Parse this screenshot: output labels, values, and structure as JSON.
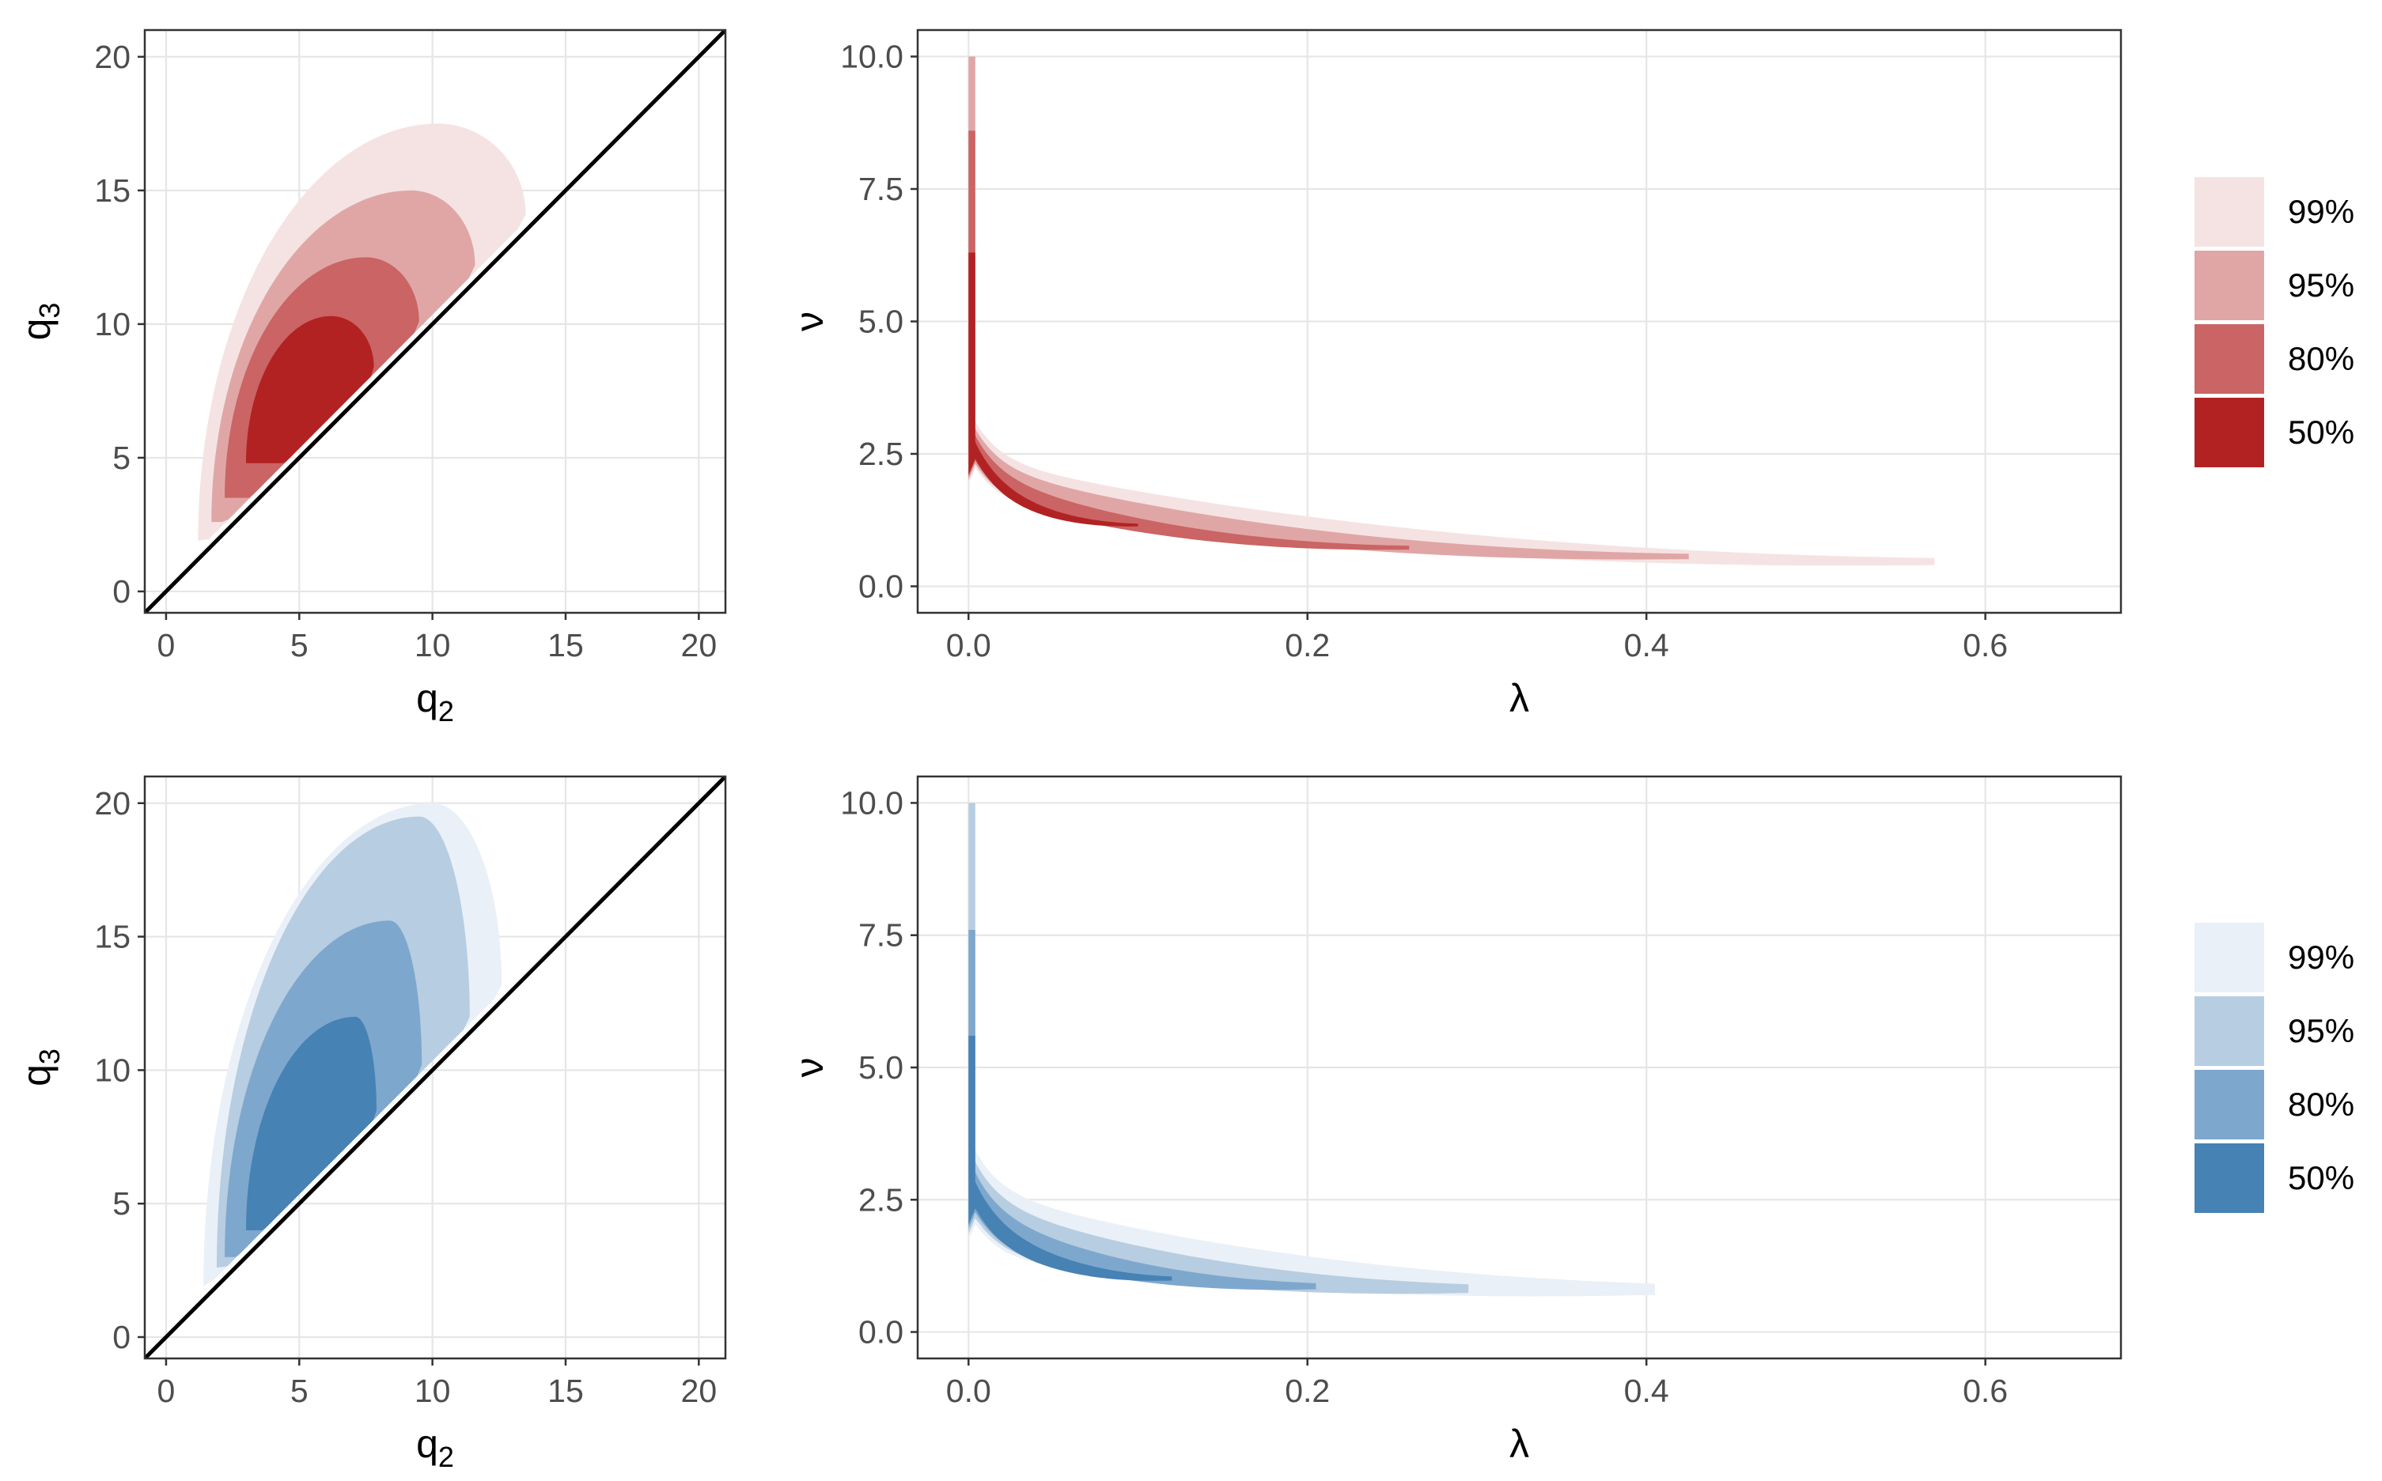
{
  "chart_data": [
    {
      "id": "top-q",
      "type": "contour",
      "palette": "red",
      "xlabel": "q",
      "xlabel_sub": "2",
      "ylabel": "q",
      "ylabel_sub": "3",
      "xlim": [
        -0.8,
        21.0
      ],
      "ylim": [
        -0.8,
        21.0
      ],
      "xticks": [
        0,
        5,
        10,
        15,
        20
      ],
      "yticks": [
        0,
        5,
        10,
        15,
        20
      ],
      "xtick_labels": [
        "0",
        "5",
        "10",
        "15",
        "20"
      ],
      "ytick_labels": [
        "0",
        "5",
        "10",
        "15",
        "20"
      ],
      "reference_line": "y = x",
      "regions": [
        {
          "level": "99%",
          "x_range": [
            1.2,
            13.5
          ],
          "y_range": [
            1.9,
            17.5
          ],
          "peak": [
            10.2,
            17.5
          ]
        },
        {
          "level": "95%",
          "x_range": [
            1.7,
            11.6
          ],
          "y_range": [
            2.6,
            15.0
          ],
          "peak": [
            9.2,
            15.0
          ]
        },
        {
          "level": "80%",
          "x_range": [
            2.2,
            9.5
          ],
          "y_range": [
            3.5,
            12.5
          ],
          "peak": [
            7.5,
            12.5
          ]
        },
        {
          "level": "50%",
          "x_range": [
            3.0,
            7.8
          ],
          "y_range": [
            4.8,
            10.3
          ],
          "peak": [
            6.2,
            10.3
          ]
        }
      ]
    },
    {
      "id": "top-lambda",
      "type": "contour",
      "palette": "red",
      "xlabel": "λ",
      "ylabel": "ν",
      "xlim": [
        -0.03,
        0.68
      ],
      "ylim": [
        -0.5,
        10.5
      ],
      "xticks": [
        0,
        0.2,
        0.4,
        0.6
      ],
      "yticks": [
        0,
        2.5,
        5,
        7.5,
        10
      ],
      "xtick_labels": [
        "0.0",
        "0.2",
        "0.4",
        "0.6"
      ],
      "ytick_labels": [
        "0.0",
        "2.5",
        "5.0",
        "7.5",
        "10.0"
      ],
      "regions": [
        {
          "level": "99%",
          "lambda_max": 0.57,
          "nu_max": 10.0,
          "nu_at_lambda_max": 0.45
        },
        {
          "level": "95%",
          "lambda_max": 0.425,
          "nu_max": 10.0,
          "nu_at_lambda_max": 0.55
        },
        {
          "level": "80%",
          "lambda_max": 0.26,
          "nu_max": 8.6,
          "nu_at_lambda_max": 0.72
        },
        {
          "level": "50%",
          "lambda_max": 0.1,
          "nu_max": 6.3,
          "nu_at_lambda_max": 1.15
        }
      ]
    },
    {
      "id": "bottom-q",
      "type": "contour",
      "palette": "blue",
      "xlabel": "q",
      "xlabel_sub": "2",
      "ylabel": "q",
      "ylabel_sub": "3",
      "xlim": [
        -0.8,
        21.0
      ],
      "ylim": [
        -0.8,
        21.0
      ],
      "xticks": [
        0,
        5,
        10,
        15,
        20
      ],
      "yticks": [
        0,
        5,
        10,
        15,
        20
      ],
      "xtick_labels": [
        "0",
        "5",
        "10",
        "15",
        "20"
      ],
      "ytick_labels": [
        "0",
        "5",
        "10",
        "15",
        "20"
      ],
      "reference_line": "y = x",
      "regions": [
        {
          "level": "99%",
          "x_range": [
            1.4,
            12.6
          ],
          "y_range": [
            1.9,
            20.0
          ],
          "peak": [
            10.0,
            20.0
          ]
        },
        {
          "level": "95%",
          "x_range": [
            1.9,
            11.4
          ],
          "y_range": [
            2.6,
            19.5
          ],
          "peak": [
            9.5,
            19.5
          ]
        },
        {
          "level": "80%",
          "x_range": [
            2.2,
            9.6
          ],
          "y_range": [
            3.0,
            15.6
          ],
          "peak": [
            8.4,
            15.6
          ]
        },
        {
          "level": "50%",
          "x_range": [
            3.0,
            7.9
          ],
          "y_range": [
            4.0,
            12.0
          ],
          "peak": [
            7.1,
            12.0
          ]
        }
      ]
    },
    {
      "id": "bottom-lambda",
      "type": "contour",
      "palette": "blue",
      "xlabel": "λ",
      "ylabel": "ν",
      "xlim": [
        -0.03,
        0.68
      ],
      "ylim": [
        -0.5,
        10.5
      ],
      "xticks": [
        0,
        0.2,
        0.4,
        0.6
      ],
      "yticks": [
        0,
        2.5,
        5,
        7.5,
        10
      ],
      "xtick_labels": [
        "0.0",
        "0.2",
        "0.4",
        "0.6"
      ],
      "ytick_labels": [
        "0.0",
        "2.5",
        "5.0",
        "7.5",
        "10.0"
      ],
      "regions": [
        {
          "level": "99%",
          "lambda_max": 0.405,
          "nu_max": 10.0,
          "nu_at_lambda_max": 0.78
        },
        {
          "level": "95%",
          "lambda_max": 0.295,
          "nu_max": 10.0,
          "nu_at_lambda_max": 0.8
        },
        {
          "level": "80%",
          "lambda_max": 0.205,
          "nu_max": 7.6,
          "nu_at_lambda_max": 0.85
        },
        {
          "level": "50%",
          "lambda_max": 0.12,
          "nu_max": 5.6,
          "nu_at_lambda_max": 1.0
        }
      ]
    }
  ],
  "legends": [
    {
      "id": "red",
      "items": [
        {
          "label": "99%",
          "color": "#f5e3e3"
        },
        {
          "label": "95%",
          "color": "#e0a6a6"
        },
        {
          "label": "80%",
          "color": "#cb6464"
        },
        {
          "label": "50%",
          "color": "#b22222"
        }
      ]
    },
    {
      "id": "blue",
      "items": [
        {
          "label": "99%",
          "color": "#eaf0f7"
        },
        {
          "label": "95%",
          "color": "#b7cde1"
        },
        {
          "label": "80%",
          "color": "#7ea7cd"
        },
        {
          "label": "50%",
          "color": "#4682b4"
        }
      ]
    }
  ]
}
